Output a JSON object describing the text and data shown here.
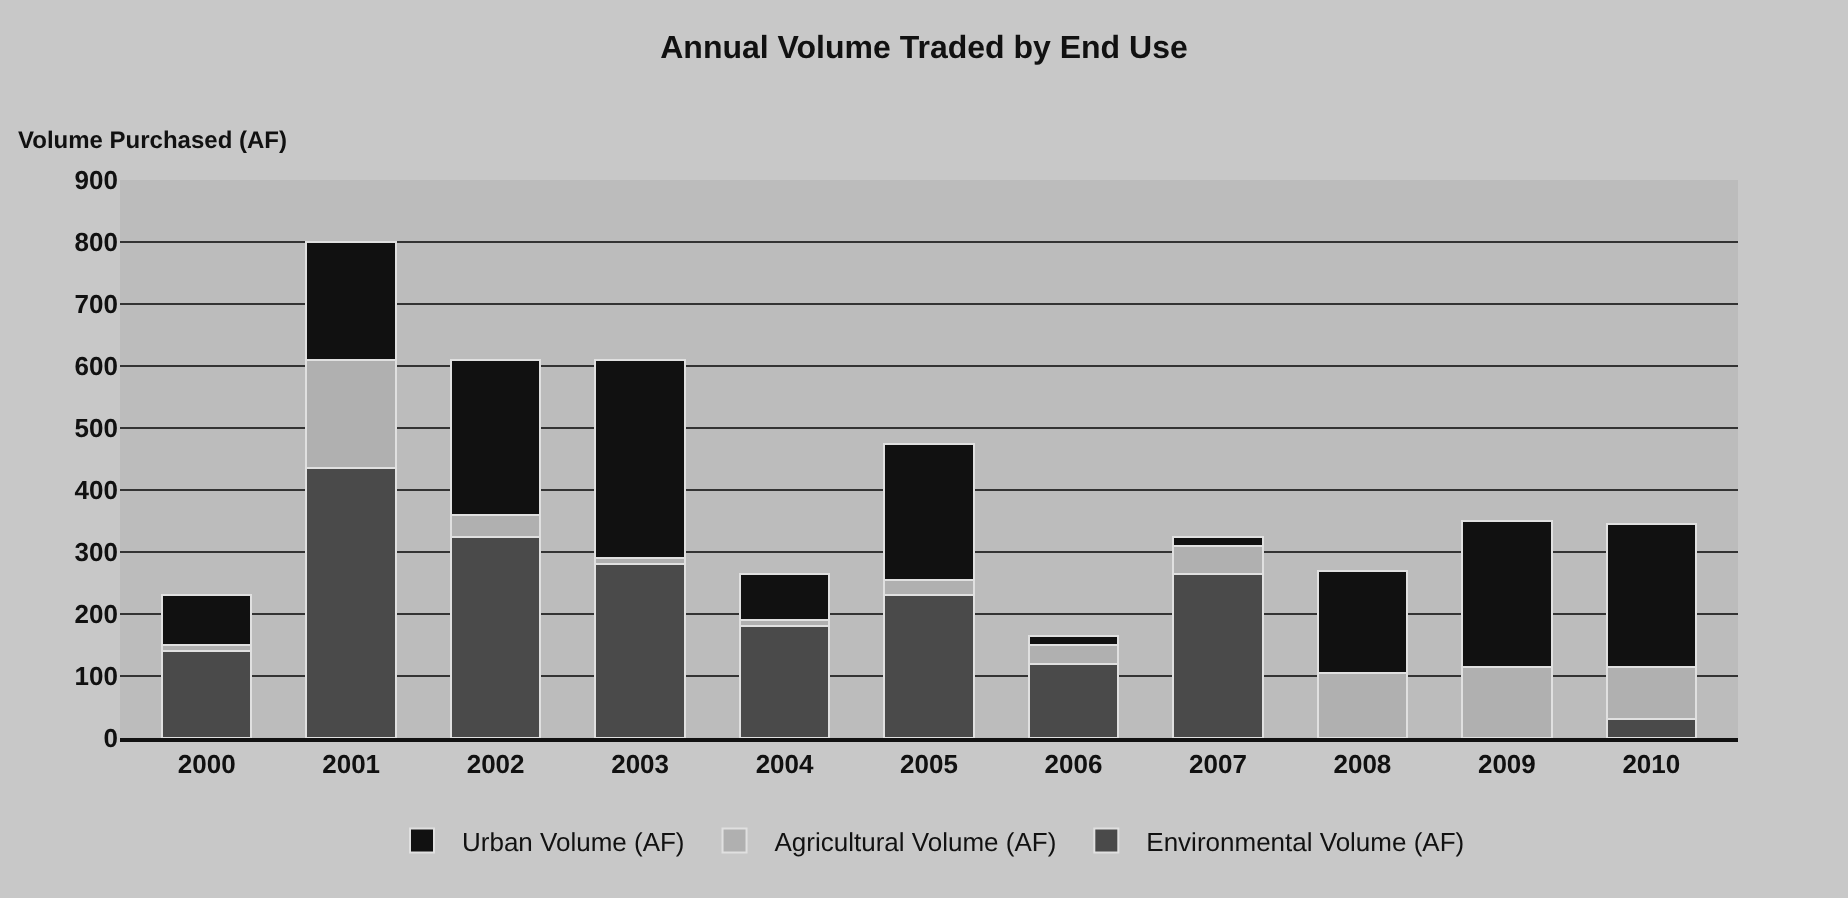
{
  "chart_data": {
    "type": "bar",
    "stacked": true,
    "title": "Annual Volume Traded by End Use",
    "ylabel": "Volume Purchased (AF)",
    "categories": [
      "2000",
      "2001",
      "2002",
      "2003",
      "2004",
      "2005",
      "2006",
      "2007",
      "2008",
      "2009",
      "2010"
    ],
    "series": [
      {
        "name": "Environmental Volume (AF)",
        "color": "#4a4a4a",
        "values": [
          140,
          435,
          325,
          280,
          180,
          230,
          120,
          265,
          0,
          0,
          30
        ]
      },
      {
        "name": "Agricultural Volume (AF)",
        "color": "#b0b0b0",
        "values": [
          10,
          175,
          35,
          10,
          10,
          25,
          30,
          45,
          105,
          115,
          85
        ]
      },
      {
        "name": "Urban Volume (AF)",
        "color": "#111111",
        "values": [
          80,
          190,
          250,
          320,
          75,
          220,
          15,
          15,
          165,
          235,
          230
        ]
      }
    ],
    "ylim": [
      0,
      900
    ],
    "yticks": [
      0,
      100,
      200,
      300,
      400,
      500,
      600,
      700,
      800,
      900
    ],
    "grid": "y",
    "legend": "bottom"
  }
}
